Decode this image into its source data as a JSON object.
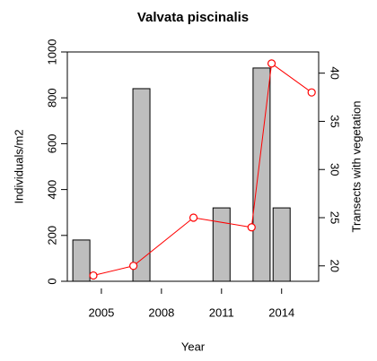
{
  "chart_data": {
    "type": "combo",
    "title": "Valvata piscinalis",
    "x_label": "Year",
    "y_label": "Individuals/m2",
    "y2_label": "Transects with vegetation",
    "xlim": [
      2003.3,
      2015.85
    ],
    "xticks": [
      2005,
      2008,
      2011,
      2014
    ],
    "ylim": [
      0,
      1000
    ],
    "yticks": [
      0,
      200,
      400,
      600,
      800,
      1000
    ],
    "y2lim": [
      18.4,
      42.2
    ],
    "y2ticks": [
      20,
      25,
      30,
      35,
      40
    ],
    "series": [
      {
        "type": "bar",
        "color": "#bebebe",
        "x": [
          2004,
          2007,
          2011,
          2013,
          2014
        ],
        "values": [
          180,
          840,
          320,
          930,
          320
        ]
      },
      {
        "type": "line",
        "color": "#ff0000",
        "axis": "y2",
        "x": [
          2004.6,
          2006.6,
          2009.6,
          2012.5,
          2013.5,
          2015.5
        ],
        "values": [
          19,
          20,
          25,
          24,
          41,
          38
        ]
      }
    ]
  }
}
